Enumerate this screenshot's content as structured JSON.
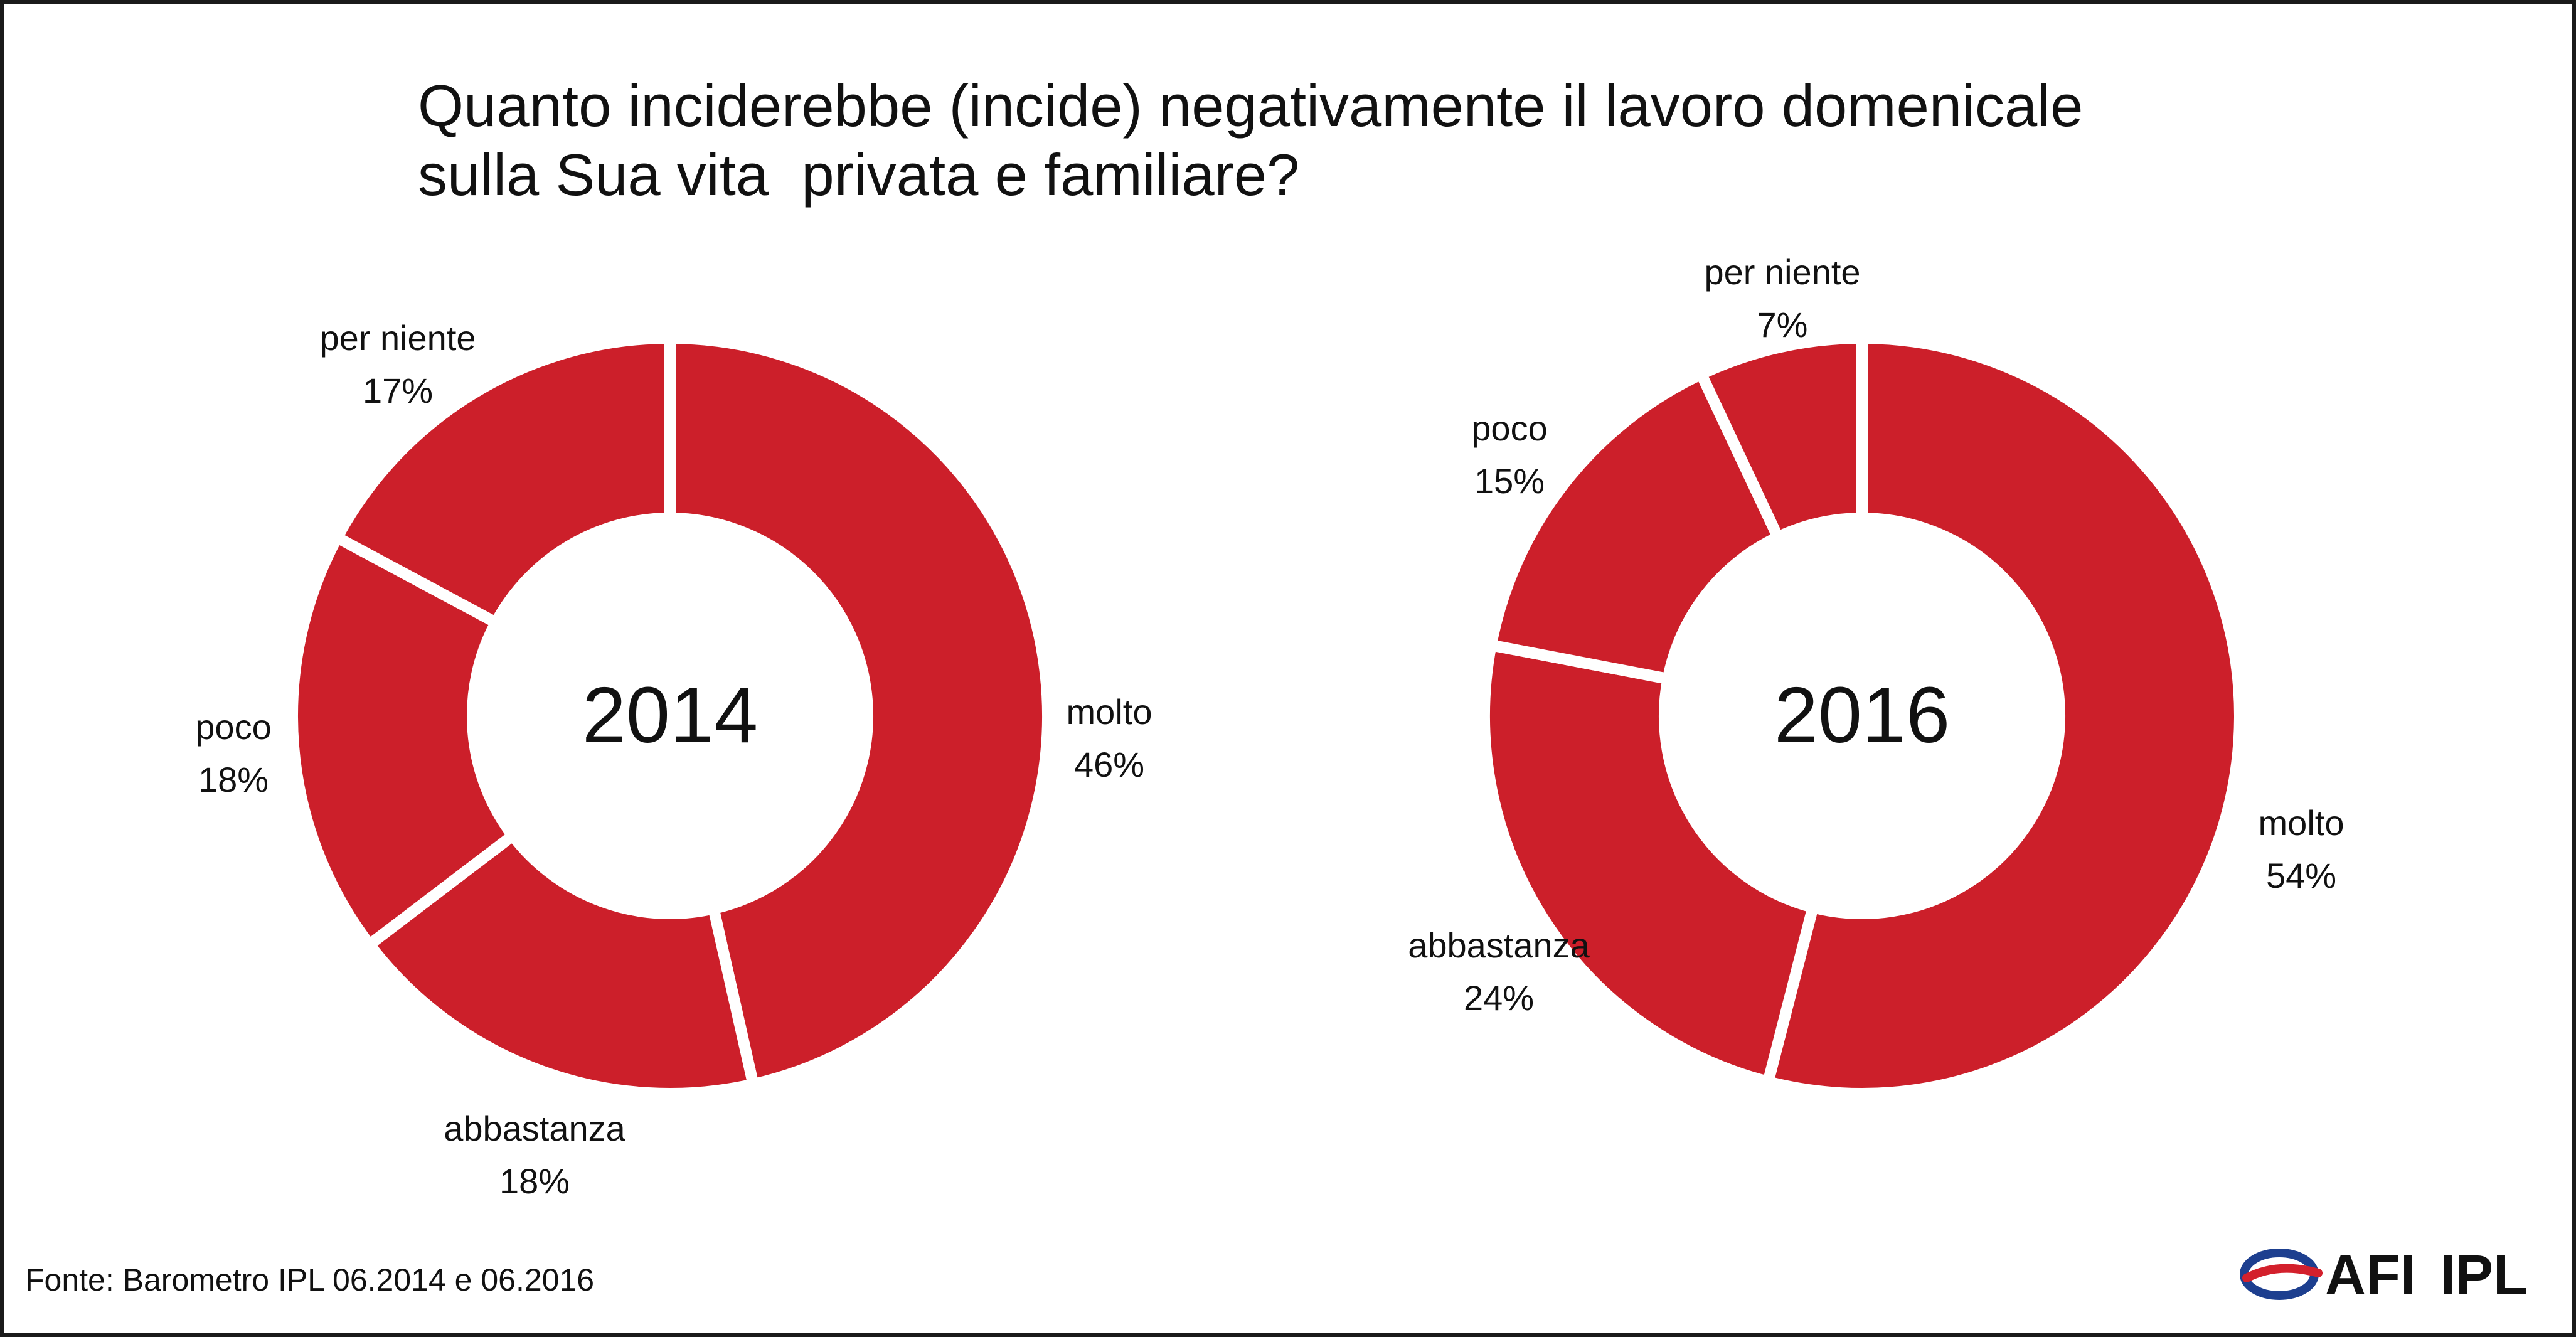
{
  "title": {
    "line1": "Quanto inciderebbe (incide) negativamente il lavoro domenicale",
    "line2": "sulla Sua vita  privata e familiare?"
  },
  "source": "Fonte: Barometro IPL 06.2014 e 06.2016",
  "logo": {
    "text": "AFIIPL",
    "icon": "afi-ipl-swoosh-logo"
  },
  "colors": {
    "segment": "#cc1f2a",
    "gap": "#ffffff",
    "text": "#111111"
  },
  "chart_data": [
    {
      "type": "pie",
      "center_label": "2014",
      "categories": [
        "molto",
        "abbastanza",
        "poco",
        "per niente"
      ],
      "values": [
        46,
        18,
        18,
        17
      ],
      "value_labels": [
        "46%",
        "18%",
        "18%",
        "17%"
      ],
      "hole": true,
      "start": "top",
      "direction": "clockwise"
    },
    {
      "type": "pie",
      "center_label": "2016",
      "categories": [
        "molto",
        "abbastanza",
        "poco",
        "per niente"
      ],
      "values": [
        54,
        24,
        15,
        7
      ],
      "value_labels": [
        "54%",
        "24%",
        "15%",
        "7%"
      ],
      "hole": true,
      "start": "top",
      "direction": "clockwise"
    }
  ]
}
